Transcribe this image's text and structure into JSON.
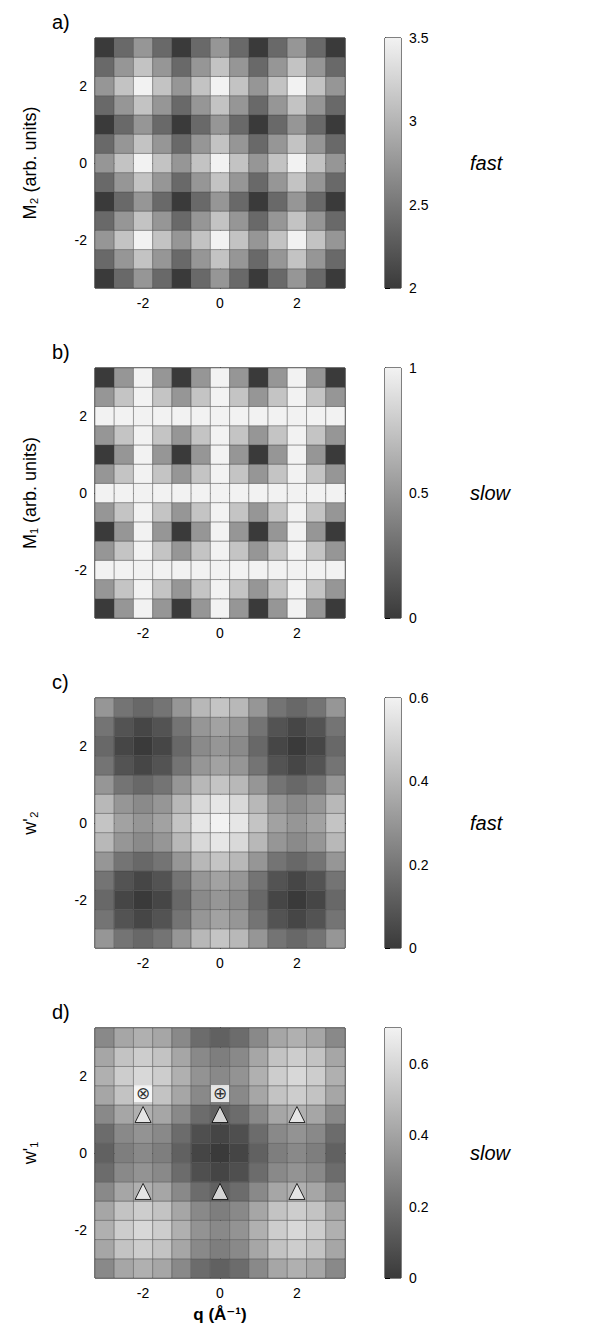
{
  "chart_data": [
    {
      "type": "heatmap",
      "label": "a)",
      "z_title": "M₂ (arb. units)",
      "side_label": "fast",
      "x": [
        -3,
        -2.5,
        -2,
        -1.5,
        -1,
        -0.5,
        0,
        0.5,
        1,
        1.5,
        2,
        2.5,
        3
      ],
      "y": [
        -3,
        -2.5,
        -2,
        -1.5,
        -1,
        -0.5,
        0,
        0.5,
        1,
        1.5,
        2,
        2.5,
        3
      ],
      "xlim": [
        -3.25,
        3.25
      ],
      "ylim": [
        -3.25,
        3.25
      ],
      "xticks": [
        -2,
        0,
        2
      ],
      "yticks": [
        -2,
        0,
        2
      ],
      "zlim": [
        2,
        3.5
      ],
      "zticks": [
        2,
        2.5,
        3,
        3.5
      ],
      "z": [
        [
          2,
          2.38,
          2.75,
          2.38,
          2,
          2.38,
          2.75,
          2.38,
          2,
          2.38,
          2.75,
          2.38,
          2
        ],
        [
          2.38,
          2.75,
          3.12,
          2.75,
          2.38,
          2.75,
          3.12,
          2.75,
          2.38,
          2.75,
          3.12,
          2.75,
          2.38
        ],
        [
          2.75,
          3.12,
          3.5,
          3.12,
          2.75,
          3.12,
          3.5,
          3.12,
          2.75,
          3.12,
          3.5,
          3.12,
          2.75
        ],
        [
          2.38,
          2.75,
          3.12,
          2.75,
          2.38,
          2.75,
          3.12,
          2.75,
          2.38,
          2.75,
          3.12,
          2.75,
          2.38
        ],
        [
          2,
          2.38,
          2.75,
          2.38,
          2,
          2.38,
          2.75,
          2.38,
          2,
          2.38,
          2.75,
          2.38,
          2
        ],
        [
          2.38,
          2.75,
          3.12,
          2.75,
          2.38,
          2.75,
          3.12,
          2.75,
          2.38,
          2.75,
          3.12,
          2.75,
          2.38
        ],
        [
          2.75,
          3.12,
          3.5,
          3.12,
          2.75,
          3.12,
          3.5,
          3.12,
          2.75,
          3.12,
          3.5,
          3.12,
          2.75
        ],
        [
          2.38,
          2.75,
          3.12,
          2.75,
          2.38,
          2.75,
          3.12,
          2.75,
          2.38,
          2.75,
          3.12,
          2.75,
          2.38
        ],
        [
          2,
          2.38,
          2.75,
          2.38,
          2,
          2.38,
          2.75,
          2.38,
          2,
          2.38,
          2.75,
          2.38,
          2
        ],
        [
          2.38,
          2.75,
          3.12,
          2.75,
          2.38,
          2.75,
          3.12,
          2.75,
          2.38,
          2.75,
          3.12,
          2.75,
          2.38
        ],
        [
          2.75,
          3.12,
          3.5,
          3.12,
          2.75,
          3.12,
          3.5,
          3.12,
          2.75,
          3.12,
          3.5,
          3.12,
          2.75
        ],
        [
          2.38,
          2.75,
          3.12,
          2.75,
          2.38,
          2.75,
          3.12,
          2.75,
          2.38,
          2.75,
          3.12,
          2.75,
          2.38
        ],
        [
          2,
          2.38,
          2.75,
          2.38,
          2,
          2.38,
          2.75,
          2.38,
          2,
          2.38,
          2.75,
          2.38,
          2
        ]
      ]
    },
    {
      "type": "heatmap",
      "label": "b)",
      "z_title": "M₁ (arb. units)",
      "side_label": "slow",
      "x": [
        -3,
        -2.5,
        -2,
        -1.5,
        -1,
        -0.5,
        0,
        0.5,
        1,
        1.5,
        2,
        2.5,
        3
      ],
      "y": [
        -3,
        -2.5,
        -2,
        -1.5,
        -1,
        -0.5,
        0,
        0.5,
        1,
        1.5,
        2,
        2.5,
        3
      ],
      "xlim": [
        -3.25,
        3.25
      ],
      "ylim": [
        -3.25,
        3.25
      ],
      "xticks": [
        -2,
        0,
        2
      ],
      "yticks": [
        -2,
        0,
        2
      ],
      "zlim": [
        0,
        1
      ],
      "zticks": [
        0,
        0.5,
        1
      ],
      "z": [
        [
          0,
          0.5,
          1,
          0.5,
          0,
          0.5,
          1,
          0.5,
          0,
          0.5,
          1,
          0.5,
          0
        ],
        [
          0.5,
          0.75,
          1,
          0.75,
          0.5,
          0.75,
          1,
          0.75,
          0.5,
          0.75,
          1,
          0.75,
          0.5
        ],
        [
          1,
          1,
          1,
          1,
          1,
          1,
          1,
          1,
          1,
          1,
          1,
          1,
          1
        ],
        [
          0.5,
          0.75,
          1,
          0.75,
          0.5,
          0.75,
          1,
          0.75,
          0.5,
          0.75,
          1,
          0.75,
          0.5
        ],
        [
          0,
          0.5,
          1,
          0.5,
          0,
          0.5,
          1,
          0.5,
          0,
          0.5,
          1,
          0.5,
          0
        ],
        [
          0.5,
          0.75,
          1,
          0.75,
          0.5,
          0.75,
          1,
          0.75,
          0.5,
          0.75,
          1,
          0.75,
          0.5
        ],
        [
          1,
          1,
          1,
          1,
          1,
          1,
          1,
          1,
          1,
          1,
          1,
          1,
          1
        ],
        [
          0.5,
          0.75,
          1,
          0.75,
          0.5,
          0.75,
          1,
          0.75,
          0.5,
          0.75,
          1,
          0.75,
          0.5
        ],
        [
          0,
          0.5,
          1,
          0.5,
          0,
          0.5,
          1,
          0.5,
          0,
          0.5,
          1,
          0.5,
          0
        ],
        [
          0.5,
          0.75,
          1,
          0.75,
          0.5,
          0.75,
          1,
          0.75,
          0.5,
          0.75,
          1,
          0.75,
          0.5
        ],
        [
          1,
          1,
          1,
          1,
          1,
          1,
          1,
          1,
          1,
          1,
          1,
          1,
          1
        ],
        [
          0.5,
          0.75,
          1,
          0.75,
          0.5,
          0.75,
          1,
          0.75,
          0.5,
          0.75,
          1,
          0.75,
          0.5
        ],
        [
          0,
          0.5,
          1,
          0.5,
          0,
          0.5,
          1,
          0.5,
          0,
          0.5,
          1,
          0.5,
          0
        ]
      ]
    },
    {
      "type": "heatmap",
      "label": "c)",
      "z_title": "w'₂",
      "side_label": "fast",
      "x": [
        -3,
        -2.5,
        -2,
        -1.5,
        -1,
        -0.5,
        0,
        0.5,
        1,
        1.5,
        2,
        2.5,
        3
      ],
      "y": [
        -3,
        -2.5,
        -2,
        -1.5,
        -1,
        -0.5,
        0,
        0.5,
        1,
        1.5,
        2,
        2.5,
        3
      ],
      "xlim": [
        -3.25,
        3.25
      ],
      "ylim": [
        -3.25,
        3.25
      ],
      "xticks": [
        -2,
        0,
        2
      ],
      "yticks": [
        -2,
        0,
        2
      ],
      "zlim": [
        0,
        0.6
      ],
      "zticks": [
        0,
        0.2,
        0.4,
        0.6
      ],
      "z": [
        [
          0.3,
          0.19,
          0.15,
          0.19,
          0.3,
          0.41,
          0.45,
          0.41,
          0.3,
          0.19,
          0.15,
          0.19,
          0.3
        ],
        [
          0.19,
          0.08,
          0.04,
          0.08,
          0.19,
          0.3,
          0.34,
          0.3,
          0.19,
          0.08,
          0.04,
          0.08,
          0.19
        ],
        [
          0.15,
          0.04,
          0,
          0.04,
          0.15,
          0.26,
          0.3,
          0.26,
          0.15,
          0.04,
          0,
          0.04,
          0.15
        ],
        [
          0.19,
          0.08,
          0.04,
          0.08,
          0.19,
          0.3,
          0.34,
          0.3,
          0.19,
          0.08,
          0.04,
          0.08,
          0.19
        ],
        [
          0.3,
          0.19,
          0.15,
          0.19,
          0.3,
          0.41,
          0.45,
          0.41,
          0.3,
          0.19,
          0.15,
          0.19,
          0.3
        ],
        [
          0.41,
          0.3,
          0.26,
          0.3,
          0.41,
          0.52,
          0.56,
          0.52,
          0.41,
          0.3,
          0.26,
          0.3,
          0.41
        ],
        [
          0.45,
          0.34,
          0.3,
          0.34,
          0.45,
          0.56,
          0.6,
          0.56,
          0.45,
          0.34,
          0.3,
          0.34,
          0.45
        ],
        [
          0.41,
          0.3,
          0.26,
          0.3,
          0.41,
          0.52,
          0.56,
          0.52,
          0.41,
          0.3,
          0.26,
          0.3,
          0.41
        ],
        [
          0.3,
          0.19,
          0.15,
          0.19,
          0.3,
          0.41,
          0.45,
          0.41,
          0.3,
          0.19,
          0.15,
          0.19,
          0.3
        ],
        [
          0.19,
          0.08,
          0.04,
          0.08,
          0.19,
          0.3,
          0.34,
          0.3,
          0.19,
          0.08,
          0.04,
          0.08,
          0.19
        ],
        [
          0.15,
          0.04,
          0,
          0.04,
          0.15,
          0.26,
          0.3,
          0.26,
          0.15,
          0.04,
          0,
          0.04,
          0.15
        ],
        [
          0.19,
          0.08,
          0.04,
          0.08,
          0.19,
          0.3,
          0.34,
          0.3,
          0.19,
          0.08,
          0.04,
          0.08,
          0.19
        ],
        [
          0.3,
          0.19,
          0.15,
          0.19,
          0.3,
          0.41,
          0.45,
          0.41,
          0.3,
          0.19,
          0.15,
          0.19,
          0.3
        ]
      ]
    },
    {
      "type": "heatmap",
      "label": "d)",
      "z_title": "w'₁",
      "side_label": "slow",
      "xlabel": "q (Å⁻¹)",
      "x": [
        -3,
        -2.5,
        -2,
        -1.5,
        -1,
        -0.5,
        0,
        0.5,
        1,
        1.5,
        2,
        2.5,
        3
      ],
      "y": [
        -3,
        -2.5,
        -2,
        -1.5,
        -1,
        -0.5,
        0,
        0.5,
        1,
        1.5,
        2,
        2.5,
        3
      ],
      "xlim": [
        -3.25,
        3.25
      ],
      "ylim": [
        -3.25,
        3.25
      ],
      "xticks": [
        -2,
        0,
        2
      ],
      "yticks": [
        -2,
        0,
        2
      ],
      "zlim": [
        0,
        0.7
      ],
      "zticks": [
        0,
        0.2,
        0.4,
        0.6
      ],
      "z": [
        [
          0.3,
          0.41,
          0.45,
          0.41,
          0.3,
          0.19,
          0.15,
          0.19,
          0.3,
          0.41,
          0.45,
          0.41,
          0.3
        ],
        [
          0.41,
          0.52,
          0.56,
          0.52,
          0.41,
          0.3,
          0.26,
          0.3,
          0.41,
          0.52,
          0.56,
          0.52,
          0.41
        ],
        [
          0.45,
          0.56,
          0.6,
          0.56,
          0.45,
          0.34,
          0.3,
          0.34,
          0.45,
          0.56,
          0.6,
          0.56,
          0.45
        ],
        [
          0.41,
          0.52,
          0.56,
          0.52,
          0.41,
          0.3,
          0.26,
          0.3,
          0.41,
          0.52,
          0.56,
          0.52,
          0.41
        ],
        [
          0.3,
          0.41,
          0.45,
          0.41,
          0.3,
          0.19,
          0.15,
          0.19,
          0.3,
          0.41,
          0.45,
          0.41,
          0.3
        ],
        [
          0.19,
          0.3,
          0.34,
          0.3,
          0.19,
          0.08,
          0.04,
          0.08,
          0.19,
          0.3,
          0.34,
          0.3,
          0.19
        ],
        [
          0.15,
          0.26,
          0.3,
          0.26,
          0.15,
          0.04,
          0,
          0.04,
          0.15,
          0.26,
          0.3,
          0.26,
          0.15
        ],
        [
          0.19,
          0.3,
          0.34,
          0.3,
          0.19,
          0.08,
          0.04,
          0.08,
          0.19,
          0.3,
          0.34,
          0.3,
          0.19
        ],
        [
          0.3,
          0.41,
          0.45,
          0.41,
          0.3,
          0.19,
          0.15,
          0.19,
          0.3,
          0.41,
          0.45,
          0.41,
          0.3
        ],
        [
          0.41,
          0.52,
          0.56,
          0.52,
          0.41,
          0.3,
          0.26,
          0.3,
          0.41,
          0.52,
          0.56,
          0.52,
          0.41
        ],
        [
          0.45,
          0.56,
          0.6,
          0.56,
          0.45,
          0.34,
          0.3,
          0.34,
          0.45,
          0.56,
          0.6,
          0.56,
          0.45
        ],
        [
          0.41,
          0.52,
          0.56,
          0.52,
          0.41,
          0.3,
          0.26,
          0.3,
          0.41,
          0.52,
          0.56,
          0.52,
          0.41
        ],
        [
          0.3,
          0.41,
          0.45,
          0.41,
          0.3,
          0.19,
          0.15,
          0.19,
          0.3,
          0.41,
          0.45,
          0.41,
          0.3
        ]
      ],
      "peaks": {
        "marker": "triangle",
        "points": [
          {
            "x": -2,
            "y": 1,
            "value": 0.7,
            "label": "⊗"
          },
          {
            "x": 0,
            "y": 1,
            "value": 0.7,
            "label": "⊕"
          },
          {
            "x": 2,
            "y": 1,
            "value": 0.7
          },
          {
            "x": -2,
            "y": -1,
            "value": 0.7
          },
          {
            "x": 0,
            "y": -1,
            "value": 0.7
          },
          {
            "x": 2,
            "y": -1,
            "value": 0.7
          }
        ]
      }
    }
  ]
}
